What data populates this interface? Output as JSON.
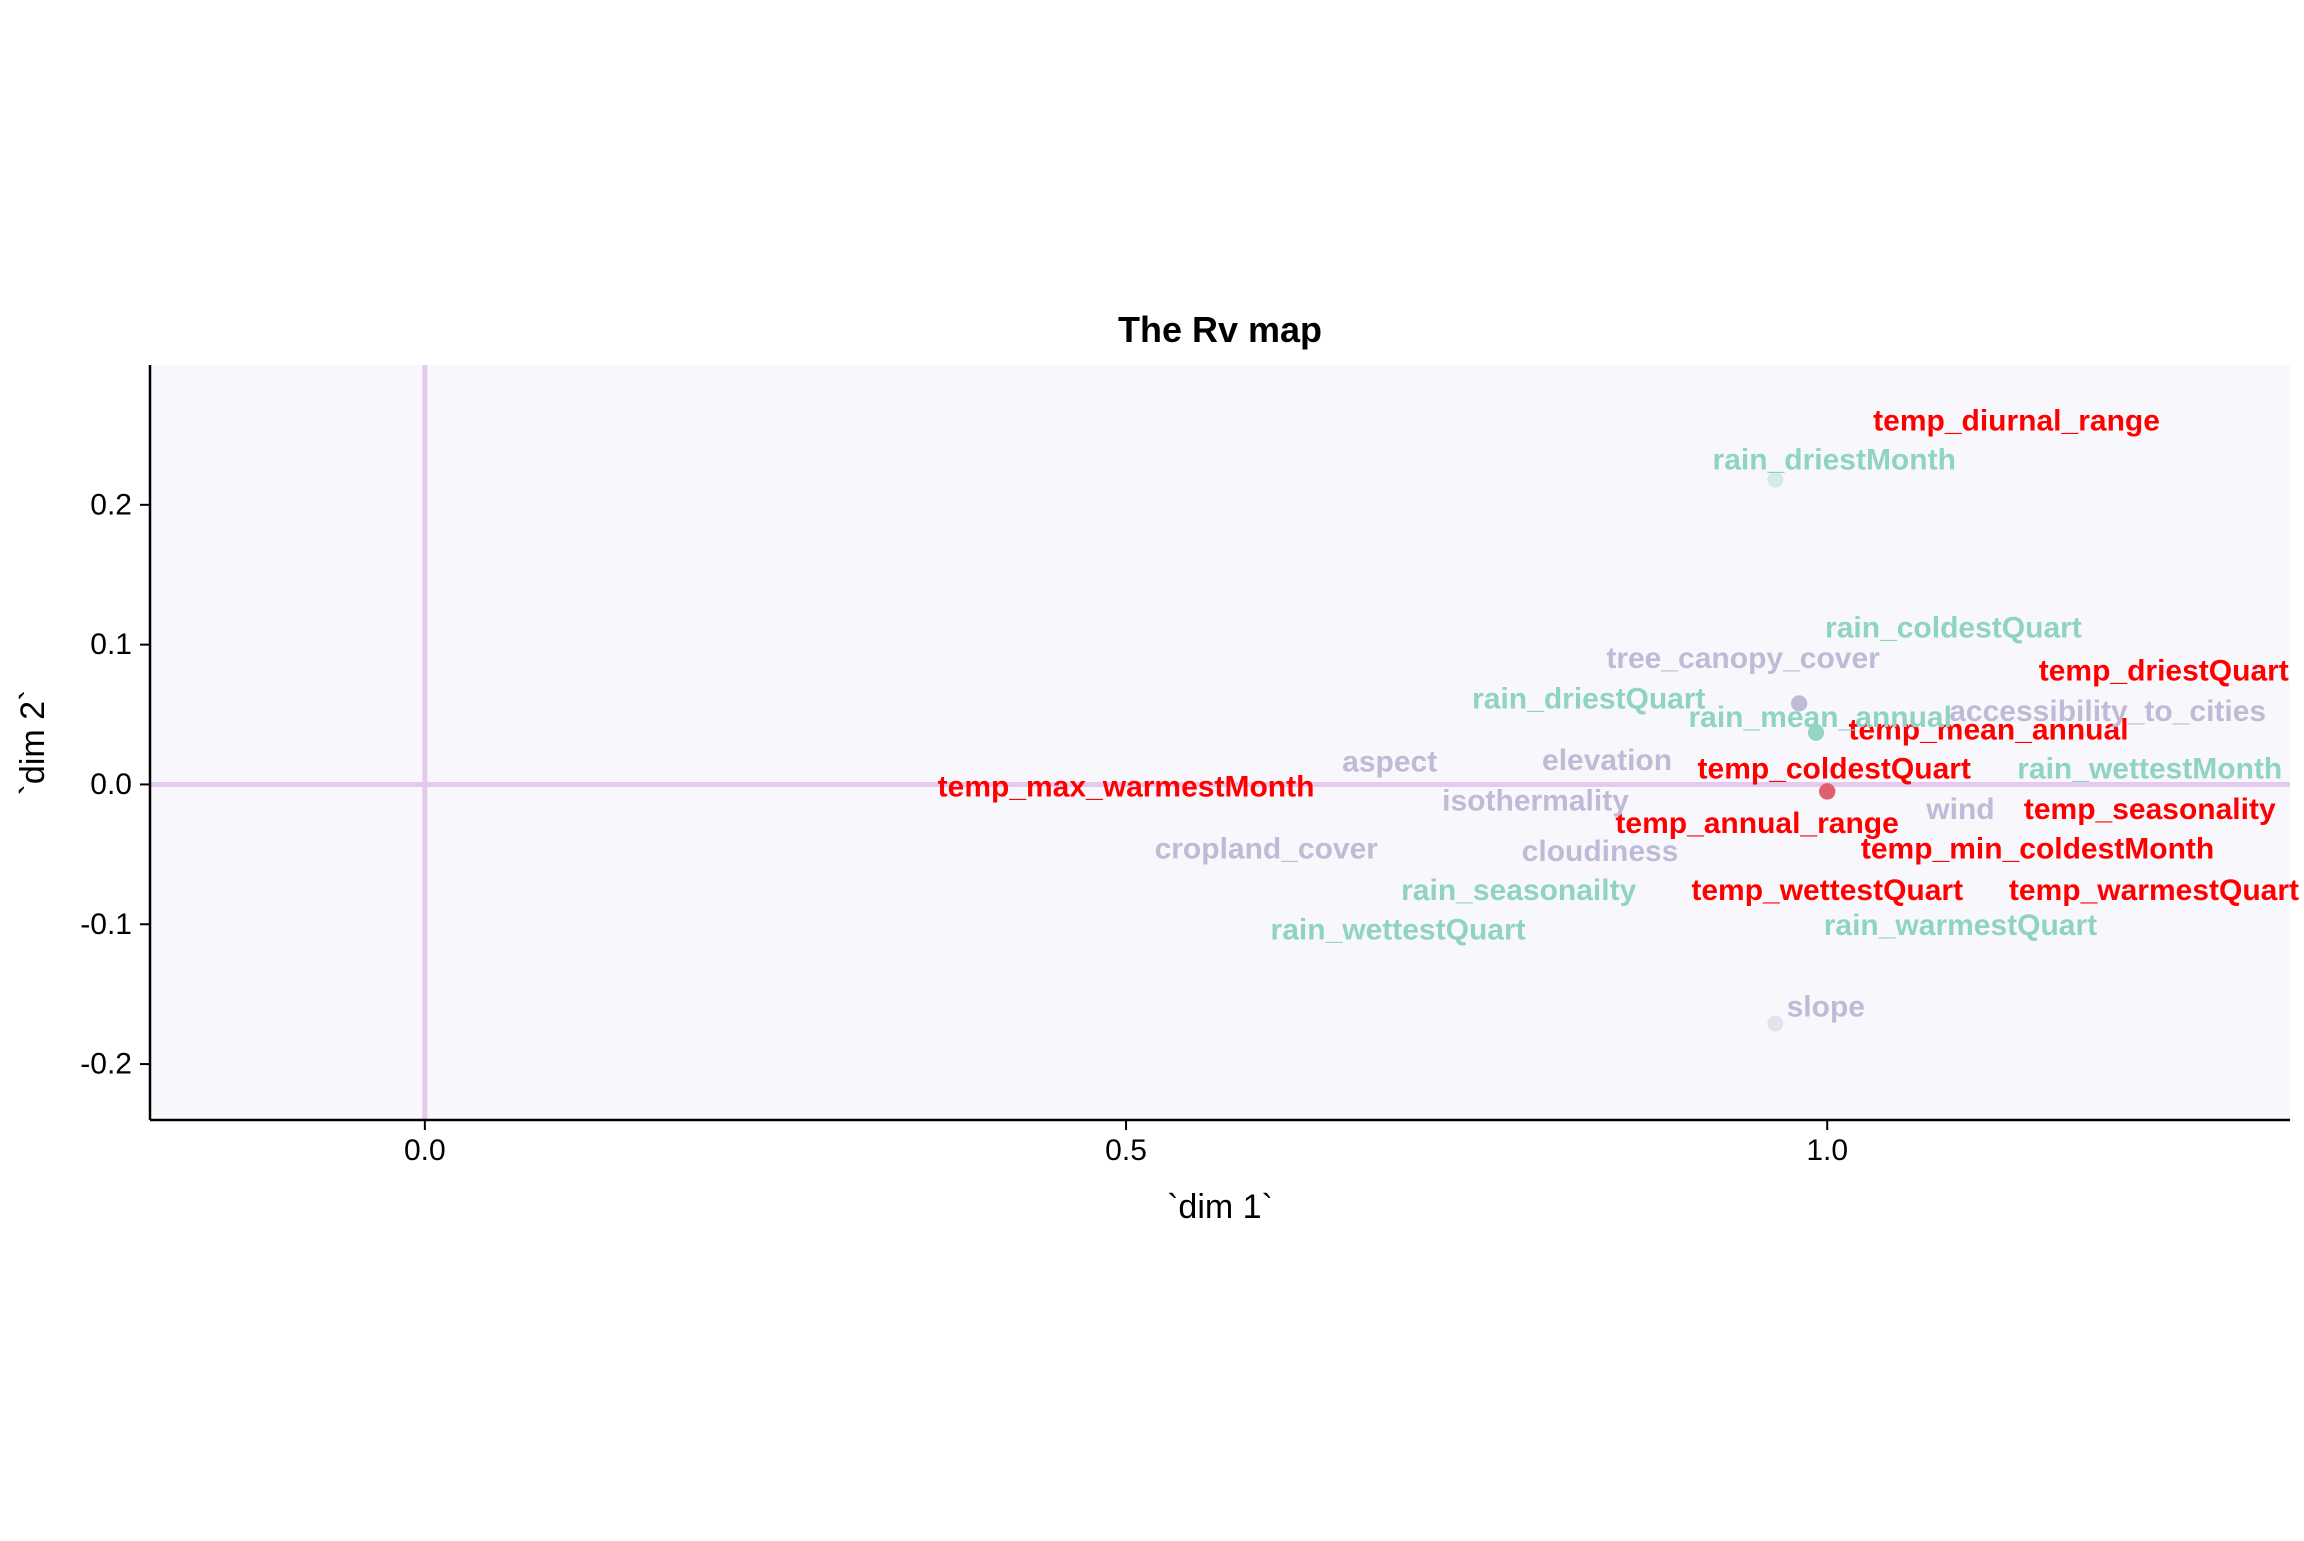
{
  "chart_data": {
    "type": "scatter",
    "title": "The Rv map",
    "xlabel": "`dim 1`",
    "ylabel": "`dim 2`",
    "xlim": [
      -0.196,
      1.33
    ],
    "ylim": [
      -0.24,
      0.3
    ],
    "x_ticks": [
      0.0,
      0.5,
      1.0
    ],
    "x_tick_labels": [
      "0.0",
      "0.5",
      "1.0"
    ],
    "y_ticks": [
      -0.2,
      -0.1,
      0.0,
      0.1,
      0.2
    ],
    "y_tick_labels": [
      "-0.2",
      "-0.1",
      "0.0",
      "0.1",
      "0.2"
    ],
    "reference_lines": {
      "x": 0,
      "y": 0
    },
    "grid": false,
    "legend": "none",
    "colors": {
      "panel_background": "#f8f8fc",
      "reference_line": "#e5c9ee",
      "temp": "#ff0000",
      "rain": "#8fd3c2",
      "other": "#bdbbd6",
      "temp_point": "#e06070"
    },
    "series": [
      {
        "group": "temp",
        "points": [
          {
            "label": "temp_diurnal_range",
            "x": 1.0,
            "y": -0.005
          },
          {
            "label": "temp_driestQuart",
            "x": 1.0,
            "y": -0.005
          },
          {
            "label": "temp_mean_annual",
            "x": 1.0,
            "y": -0.005
          },
          {
            "label": "temp_coldestQuart",
            "x": 1.0,
            "y": -0.005
          },
          {
            "label": "temp_max_warmestMonth",
            "x": 1.0,
            "y": -0.005
          },
          {
            "label": "temp_seasonality",
            "x": 1.0,
            "y": -0.005
          },
          {
            "label": "temp_annual_range",
            "x": 1.0,
            "y": -0.005
          },
          {
            "label": "temp_min_coldestMonth",
            "x": 1.0,
            "y": -0.005
          },
          {
            "label": "temp_wettestQuart",
            "x": 1.0,
            "y": -0.005
          },
          {
            "label": "temp_warmestQuart",
            "x": 1.0,
            "y": -0.005
          }
        ]
      },
      {
        "group": "rain",
        "points": [
          {
            "label": "rain_driestMonth",
            "x": 0.963,
            "y": 0.218
          },
          {
            "label": "rain_coldestQuart",
            "x": 0.992,
            "y": 0.037
          },
          {
            "label": "rain_driestQuart",
            "x": 0.992,
            "y": 0.037
          },
          {
            "label": "rain_mean_annual",
            "x": 0.992,
            "y": 0.037
          },
          {
            "label": "rain_wettestMonth",
            "x": 0.992,
            "y": 0.037
          },
          {
            "label": "rain_seasonailty",
            "x": 0.992,
            "y": 0.037
          },
          {
            "label": "rain_wettestQuart",
            "x": 0.992,
            "y": 0.037
          },
          {
            "label": "rain_warmestQuart",
            "x": 0.992,
            "y": 0.037
          }
        ]
      },
      {
        "group": "other",
        "points": [
          {
            "label": "tree_canopy_cover",
            "x": 0.98,
            "y": 0.058
          },
          {
            "label": "accessibility_to_cities",
            "x": 0.98,
            "y": 0.058
          },
          {
            "label": "aspect",
            "x": 0.98,
            "y": 0.058
          },
          {
            "label": "elevation",
            "x": 0.98,
            "y": 0.058
          },
          {
            "label": "isothermality",
            "x": 0.98,
            "y": 0.058
          },
          {
            "label": "wind",
            "x": 0.98,
            "y": 0.058
          },
          {
            "label": "cropland_cover",
            "x": 0.98,
            "y": 0.058
          },
          {
            "label": "cloudiness",
            "x": 0.98,
            "y": 0.058
          },
          {
            "label": "slope",
            "x": 0.963,
            "y": -0.171
          }
        ]
      }
    ],
    "label_positions": [
      {
        "label": "temp_diurnal_range",
        "x": 1.135,
        "y": 0.26
      },
      {
        "label": "rain_driestMonth",
        "x": 1.005,
        "y": 0.232
      },
      {
        "label": "rain_coldestQuart",
        "x": 1.09,
        "y": 0.112
      },
      {
        "label": "tree_canopy_cover",
        "x": 0.94,
        "y": 0.09
      },
      {
        "label": "temp_driestQuart",
        "x": 1.24,
        "y": 0.081
      },
      {
        "label": "rain_driestQuart",
        "x": 0.83,
        "y": 0.061
      },
      {
        "label": "rain_mean_annual",
        "x": 0.995,
        "y": 0.048
      },
      {
        "label": "accessibility_to_cities",
        "x": 1.2,
        "y": 0.052
      },
      {
        "label": "temp_mean_annual",
        "x": 1.115,
        "y": 0.039
      },
      {
        "label": "aspect",
        "x": 0.688,
        "y": 0.016
      },
      {
        "label": "elevation",
        "x": 0.843,
        "y": 0.017
      },
      {
        "label": "temp_coldestQuart",
        "x": 1.005,
        "y": 0.011
      },
      {
        "label": "rain_wettestMonth",
        "x": 1.23,
        "y": 0.011
      },
      {
        "label": "temp_max_warmestMonth",
        "x": 0.5,
        "y": -0.002
      },
      {
        "label": "isothermality",
        "x": 0.792,
        "y": -0.012
      },
      {
        "label": "wind",
        "x": 1.095,
        "y": -0.018
      },
      {
        "label": "temp_seasonality",
        "x": 1.23,
        "y": -0.018
      },
      {
        "label": "temp_annual_range",
        "x": 0.95,
        "y": -0.028
      },
      {
        "label": "temp_min_coldestMonth",
        "x": 1.15,
        "y": -0.046
      },
      {
        "label": "cropland_cover",
        "x": 0.6,
        "y": -0.046
      },
      {
        "label": "cloudiness",
        "x": 0.838,
        "y": -0.048
      },
      {
        "label": "rain_seasonailty",
        "x": 0.78,
        "y": -0.076
      },
      {
        "label": "temp_wettestQuart",
        "x": 1.0,
        "y": -0.076
      },
      {
        "label": "temp_warmestQuart",
        "x": 1.233,
        "y": -0.076
      },
      {
        "label": "rain_wettestQuart",
        "x": 0.694,
        "y": -0.104
      },
      {
        "label": "rain_warmestQuart",
        "x": 1.095,
        "y": -0.101
      },
      {
        "label": "slope",
        "x": 0.999,
        "y": -0.159
      }
    ]
  }
}
